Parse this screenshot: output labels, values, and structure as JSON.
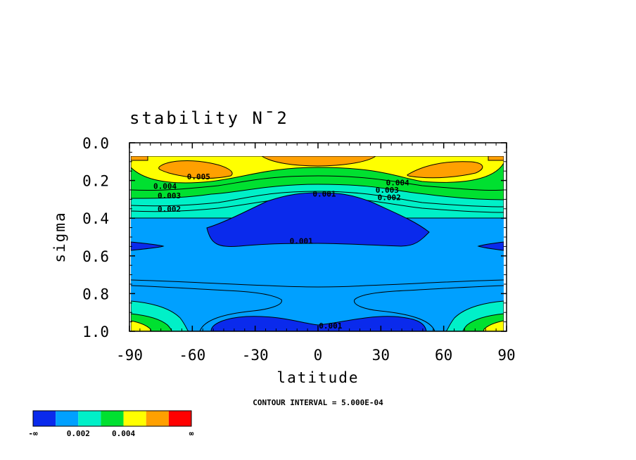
{
  "chart_data": {
    "type": "heatmap",
    "title": "stability N¯2",
    "xlabel": "latitude",
    "ylabel": "sigma",
    "xlim": [
      -90,
      90
    ],
    "ylim": [
      1.0,
      0.0
    ],
    "x_ticks": [
      "-90",
      "-60",
      "-30",
      "0",
      "30",
      "60",
      "90"
    ],
    "y_ticks": [
      "0.0",
      "0.2",
      "0.4",
      "0.6",
      "0.8",
      "1.0"
    ],
    "contour_interval_text": "CONTOUR INTERVAL = 5.000E-04",
    "contour_labels": [
      {
        "text": "0.005",
        "lat": -57,
        "sigma": 0.18
      },
      {
        "text": "0.004",
        "lat": -73,
        "sigma": 0.23
      },
      {
        "text": "0.003",
        "lat": -71,
        "sigma": 0.28
      },
      {
        "text": "0.002",
        "lat": -71,
        "sigma": 0.35
      },
      {
        "text": "0.004",
        "lat": 38,
        "sigma": 0.21
      },
      {
        "text": "0.003",
        "lat": 33,
        "sigma": 0.25
      },
      {
        "text": "0.002",
        "lat": 34,
        "sigma": 0.29
      },
      {
        "text": "0.001",
        "lat": 3,
        "sigma": 0.27
      },
      {
        "text": "0.001",
        "lat": -8,
        "sigma": 0.52
      },
      {
        "text": "0.001",
        "lat": 6,
        "sigma": 0.97
      }
    ],
    "colorbar": {
      "colors": [
        "#0a2aec",
        "#00a0ff",
        "#00f0c8",
        "#00e030",
        "#ffff00",
        "#ffa000",
        "#ff0000"
      ],
      "labels": [
        {
          "text": "-∞",
          "index": 0
        },
        {
          "text": "0.002",
          "index": 2
        },
        {
          "text": "0.004",
          "index": 4
        },
        {
          "text": "∞",
          "index": 7
        }
      ]
    },
    "palette": {
      "level_1": "#00a0ff",
      "level_0": "#0a2aec",
      "level_2": "#00f0c8",
      "level_3": "#00e030",
      "level_4": "#ffff00",
      "level_5": "#ffa000"
    }
  }
}
